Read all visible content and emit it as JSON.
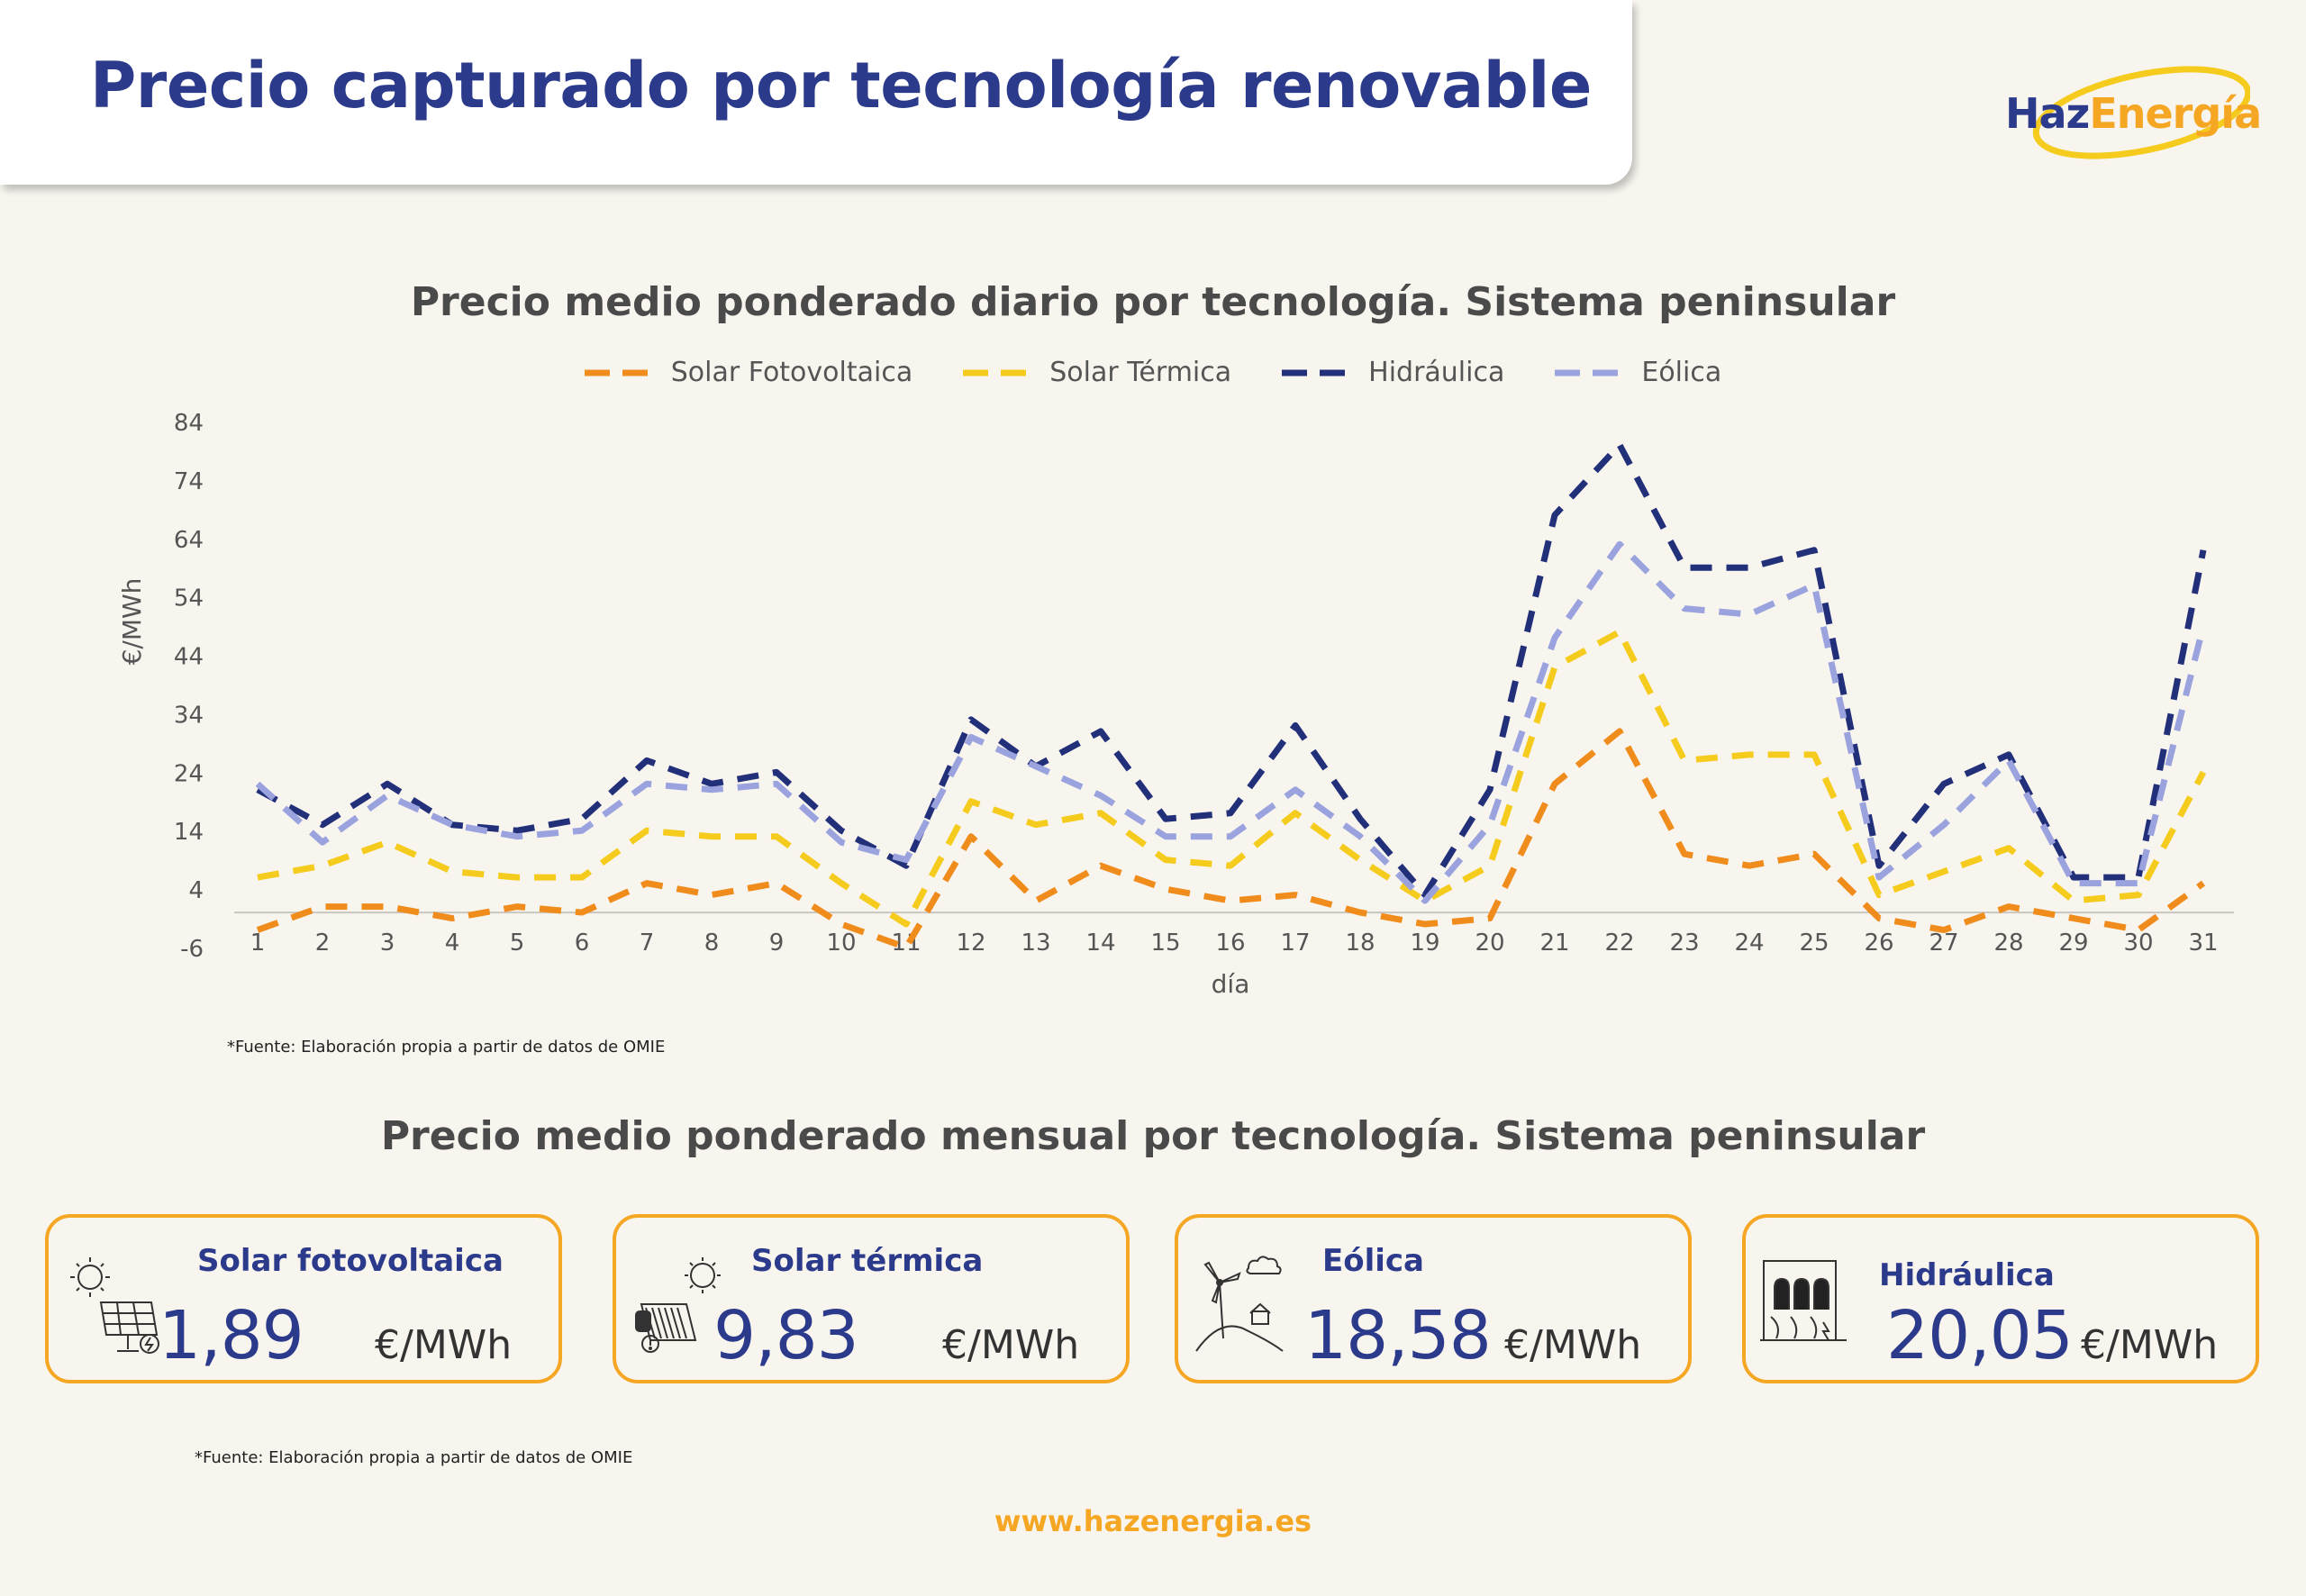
{
  "header": {
    "title": "Precio capturado por tecnología renovable",
    "logo": {
      "haz": "Haz",
      "energia": "Energía"
    }
  },
  "daily_section": {
    "title": "Precio medio ponderado diario por tecnología. Sistema peninsular",
    "source": "*Fuente:  Elaboración propia a partir de datos de OMIE"
  },
  "monthly_section": {
    "title": "Precio medio ponderado mensual por tecnología. Sistema peninsular",
    "source": "*Fuente:  Elaboración propia a partir de datos de OMIE",
    "cards": [
      {
        "label": "Solar fotovoltaica",
        "value": "1,89",
        "unit": "€/MWh",
        "icon": "solar-panel-icon"
      },
      {
        "label": "Solar térmica",
        "value": "9,83",
        "unit": "€/MWh",
        "icon": "solar-thermal-icon"
      },
      {
        "label": "Eólica",
        "value": "18,58",
        "unit": "€/MWh",
        "icon": "wind-turbine-icon"
      },
      {
        "label": "Hidráulica",
        "value": "20,05",
        "unit": "€/MWh",
        "icon": "hydro-dam-icon"
      }
    ]
  },
  "footer": {
    "url": "www.hazenergia.es"
  },
  "colors": {
    "brand_blue": "#2b3a8a",
    "brand_orange": "#f5a623",
    "background": "#f8f5ef"
  },
  "chart_data": {
    "type": "line",
    "title": "Precio medio ponderado diario por tecnología. Sistema peninsular",
    "xlabel": "día",
    "ylabel": "€/MWh",
    "ylim": [
      -6,
      84
    ],
    "yticks": [
      -6,
      4,
      14,
      24,
      34,
      44,
      54,
      64,
      74,
      84
    ],
    "grid": false,
    "legend": "top-center",
    "line_style": "dashed",
    "x": [
      1,
      2,
      3,
      4,
      5,
      6,
      7,
      8,
      9,
      10,
      11,
      12,
      13,
      14,
      15,
      16,
      17,
      18,
      19,
      20,
      21,
      22,
      23,
      24,
      25,
      26,
      27,
      28,
      29,
      30,
      31
    ],
    "series": [
      {
        "name": "Solar Fotovoltaica",
        "color": "#f08c1c",
        "values": [
          -3,
          1,
          1,
          -1,
          1,
          0,
          5,
          3,
          5,
          -2,
          -6,
          13,
          2,
          8,
          4,
          2,
          3,
          0,
          -2,
          -1,
          22,
          31,
          10,
          8,
          10,
          -1,
          -3,
          1,
          -1,
          -3,
          5
        ]
      },
      {
        "name": "Solar Térmica",
        "color": "#f5cc1e",
        "values": [
          6,
          8,
          12,
          7,
          6,
          6,
          14,
          13,
          13,
          5,
          -2,
          19,
          15,
          17,
          9,
          8,
          17,
          9,
          2,
          8,
          42,
          48,
          26,
          27,
          27,
          3,
          7,
          11,
          2,
          3,
          24
        ]
      },
      {
        "name": "Hidráulica",
        "color": "#22307a",
        "values": [
          21,
          15,
          22,
          15,
          14,
          16,
          26,
          22,
          24,
          14,
          8,
          33,
          25,
          31,
          16,
          17,
          32,
          16,
          3,
          21,
          68,
          80,
          59,
          59,
          62,
          8,
          22,
          27,
          6,
          6,
          62
        ]
      },
      {
        "name": "Eólica",
        "color": "#9aa3de",
        "values": [
          22,
          12,
          20,
          15,
          13,
          14,
          22,
          21,
          22,
          12,
          9,
          30,
          25,
          20,
          13,
          13,
          21,
          13,
          2,
          15,
          47,
          63,
          52,
          51,
          56,
          6,
          15,
          26,
          5,
          5,
          49
        ]
      }
    ]
  }
}
